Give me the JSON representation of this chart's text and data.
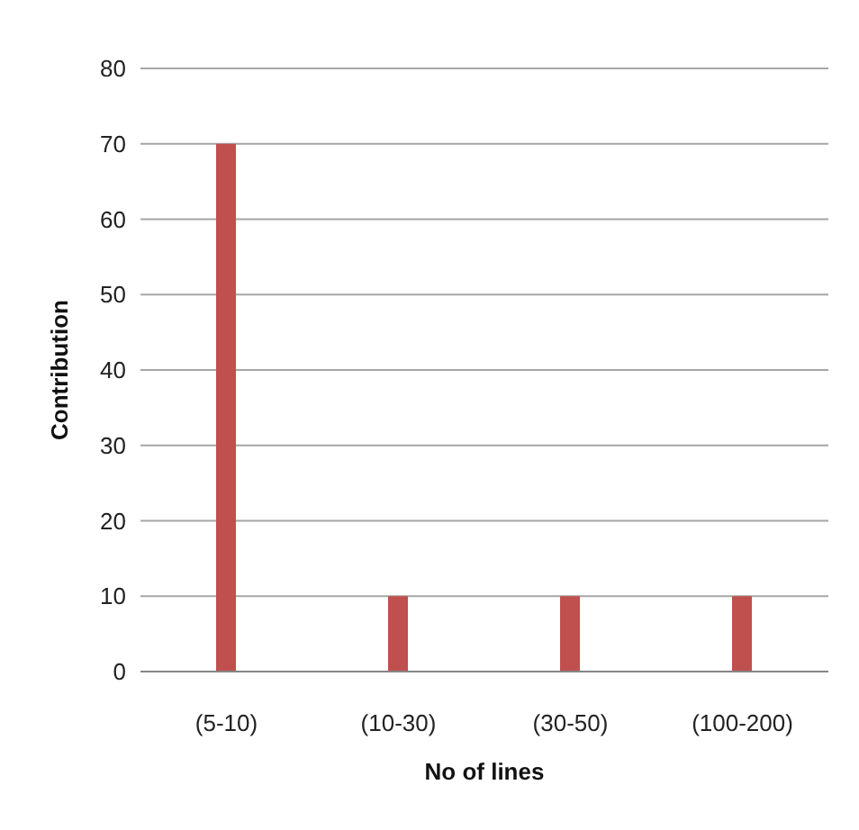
{
  "chart_data": {
    "type": "bar",
    "xlabel": "No of lines",
    "ylabel": "Contribution",
    "categories": [
      "(5-10)",
      "(10-30)",
      "(30-50)",
      "(100-200)"
    ],
    "values": [
      70,
      10,
      10,
      10
    ],
    "color": "#c0504d",
    "ylim": [
      0,
      80
    ],
    "yticks": [
      0,
      10,
      20,
      30,
      40,
      50,
      60,
      70,
      80
    ],
    "grid": "y"
  }
}
